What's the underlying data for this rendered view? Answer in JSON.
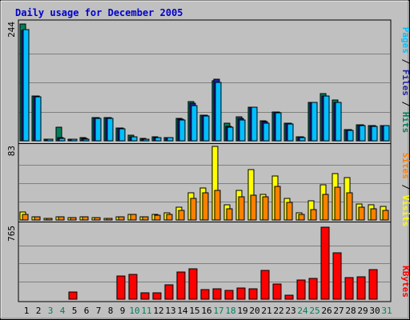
{
  "colors": {
    "background": "#c0c0c0",
    "title": "#0000cc",
    "hits": "#00805c",
    "files": "#00c0ff",
    "pages": "#00c0ff",
    "visits": "#ffff00",
    "sites": "#ff8000",
    "kbytes": "#ff0000",
    "weekend_label": "#00805c",
    "weekday_label": "#000000",
    "separator": "#000000"
  },
  "chart_data": {
    "type": "bar",
    "title": "Daily usage for December 2005",
    "days": [
      "1",
      "2",
      "3",
      "4",
      "5",
      "6",
      "7",
      "8",
      "9",
      "10",
      "11",
      "12",
      "13",
      "14",
      "15",
      "16",
      "17",
      "18",
      "19",
      "20",
      "21",
      "22",
      "23",
      "24",
      "25",
      "26",
      "27",
      "28",
      "29",
      "30",
      "31"
    ],
    "weekend_days": [
      "3",
      "4",
      "10",
      "11",
      "17",
      "18",
      "24",
      "25",
      "31"
    ],
    "panels": [
      {
        "id": "hits-files-pages",
        "ymax": 244,
        "ymax_label": "244",
        "axis_labels": [
          "Pages",
          "Files",
          "Hits"
        ],
        "series": [
          {
            "name": "Hits",
            "color": "#00805c",
            "values": [
              244,
              94,
              2,
              28,
              4,
              6,
              48,
              48,
              26,
              12,
              5,
              9,
              7,
              47,
              82,
              54,
              126,
              36,
              50,
              70,
              42,
              60,
              36,
              9,
              80,
              98,
              86,
              24,
              33,
              32,
              32
            ]
          },
          {
            "name": "Files",
            "color": "#2020a0",
            "values": [
              230,
              94,
              1,
              6,
              4,
              5,
              48,
              48,
              26,
              9,
              4,
              7,
              7,
              45,
              78,
              54,
              128,
              30,
              46,
              70,
              40,
              60,
              36,
              8,
              80,
              94,
              80,
              23,
              33,
              32,
              32
            ]
          },
          {
            "name": "Pages",
            "color": "#00c0ff",
            "values": [
              232,
              92,
              1,
              5,
              3,
              4,
              47,
              47,
              25,
              8,
              3,
              6,
              6,
              43,
              73,
              52,
              122,
              28,
              44,
              70,
              37,
              58,
              35,
              7,
              80,
              94,
              80,
              22,
              32,
              30,
              31
            ]
          }
        ]
      },
      {
        "id": "visits-sites",
        "ymax": 83,
        "ymax_label": "83",
        "axis_labels": [
          "Sites",
          "Visits"
        ],
        "series": [
          {
            "name": "Visits",
            "color": "#ffff00",
            "values": [
              9,
              4,
              2,
              4,
              3,
              4,
              3,
              2,
              4,
              6,
              4,
              6,
              8,
              14,
              31,
              36,
              83,
              17,
              33,
              57,
              29,
              50,
              24,
              8,
              22,
              40,
              52,
              48,
              18,
              17,
              15
            ]
          },
          {
            "name": "Sites",
            "color": "#ff8000",
            "values": [
              6,
              4,
              2,
              4,
              3,
              4,
              3,
              2,
              4,
              6,
              4,
              5,
              6,
              11,
              24,
              31,
              33,
              13,
              26,
              28,
              26,
              38,
              20,
              6,
              12,
              29,
              37,
              31,
              14,
              13,
              11
            ]
          }
        ]
      },
      {
        "id": "kbytes",
        "ymax": 765,
        "ymax_label": "765",
        "axis_labels": [
          "KBytes"
        ],
        "series": [
          {
            "name": "KBytes",
            "color": "#ff0000",
            "values": [
              0,
              0,
              0,
              0,
              75,
              0,
              0,
              0,
              250,
              260,
              70,
              70,
              150,
              285,
              325,
              100,
              110,
              95,
              115,
              110,
              310,
              165,
              40,
              200,
              220,
              765,
              490,
              230,
              235,
              315,
              0
            ]
          }
        ]
      }
    ]
  }
}
